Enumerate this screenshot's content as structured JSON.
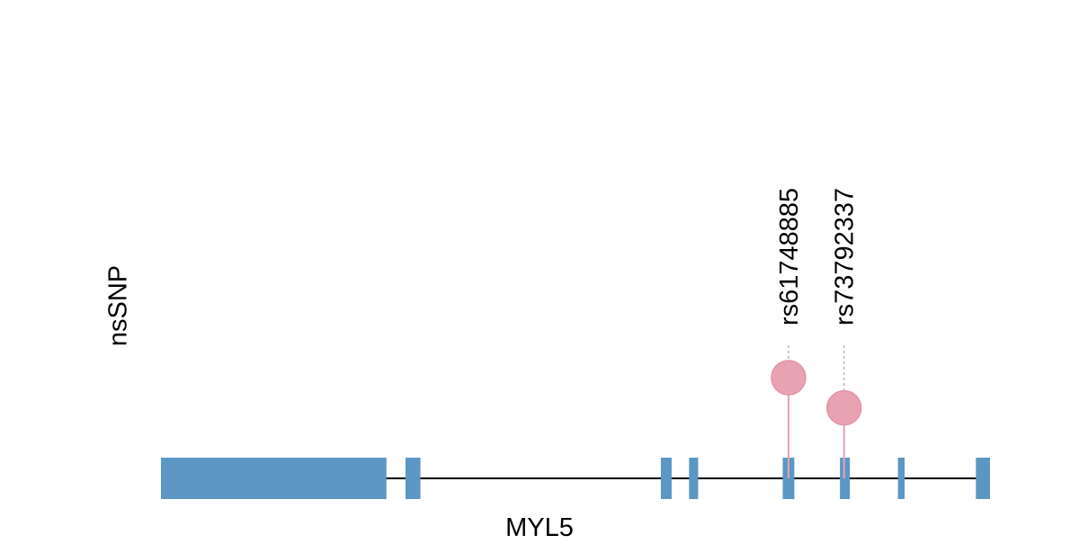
{
  "track_label": "nsSNP",
  "gene": {
    "name": "MYL5",
    "exons": [
      {
        "start": 0.0,
        "end": 0.272
      },
      {
        "start": 0.295,
        "end": 0.313
      },
      {
        "start": 0.603,
        "end": 0.616
      },
      {
        "start": 0.637,
        "end": 0.648
      },
      {
        "start": 0.75,
        "end": 0.764
      },
      {
        "start": 0.819,
        "end": 0.831
      },
      {
        "start": 0.889,
        "end": 0.897
      },
      {
        "start": 0.983,
        "end": 1.0
      }
    ]
  },
  "snps": [
    {
      "id": "rs61748885",
      "position": 0.757,
      "level": 1.0
    },
    {
      "id": "rs73792337",
      "position": 0.824,
      "level": 0.7
    }
  ],
  "colors": {
    "exon": "#5b97c4",
    "backbone": "#000000",
    "snp_head": "#e9a2b2",
    "snp_stem": "#e9a2b2",
    "connector": "#bbbbbb"
  }
}
